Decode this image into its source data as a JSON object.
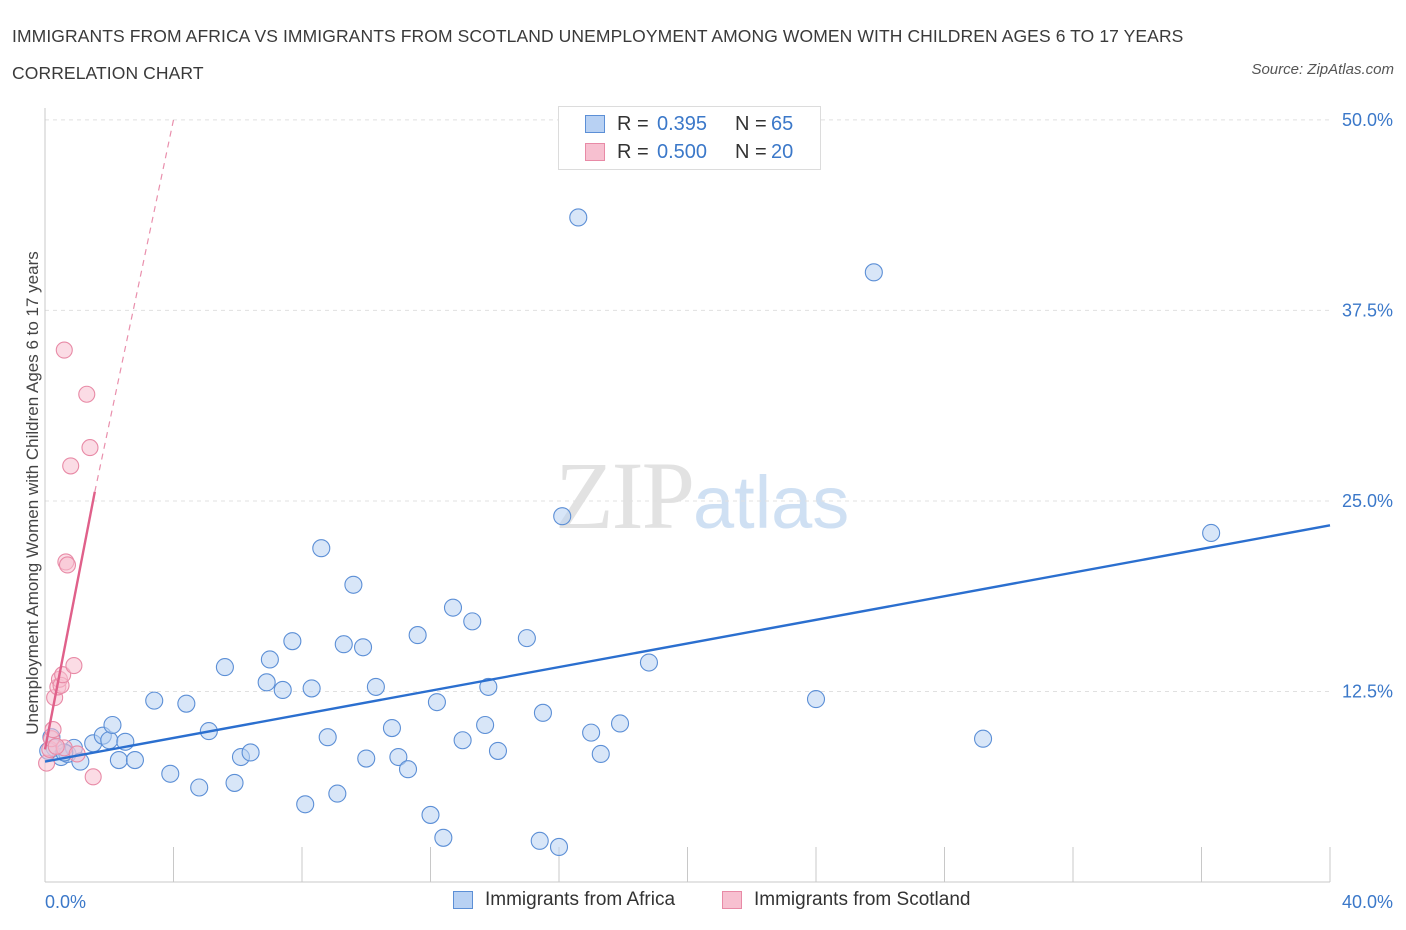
{
  "title": "IMMIGRANTS FROM AFRICA VS IMMIGRANTS FROM SCOTLAND UNEMPLOYMENT AMONG WOMEN WITH CHILDREN AGES 6 TO 17 YEARS CORRELATION CHART",
  "source": "Source: ZipAtlas.com",
  "watermark": {
    "zip": "ZIP",
    "atlas": "atlas"
  },
  "legend": {
    "africa": {
      "r_label": "R =",
      "r_value": "0.395",
      "n_label": "N =",
      "n_value": "65"
    },
    "scotland": {
      "r_label": "R =",
      "r_value": "0.500",
      "n_label": "N =",
      "n_value": "20"
    }
  },
  "colors": {
    "africa_fill": "#b8d1f3",
    "africa_stroke": "#5c8fd6",
    "africa_line": "#2b6fcf",
    "scotland_fill": "#f7c0d0",
    "scotland_stroke": "#e88aa6",
    "scotland_line": "#e0608a",
    "tick_label": "#3b78c9",
    "grid": "#e0e0e0"
  },
  "chart_data": {
    "type": "scatter",
    "title": "IMMIGRANTS FROM AFRICA VS IMMIGRANTS FROM SCOTLAND UNEMPLOYMENT AMONG WOMEN WITH CHILDREN AGES 6 TO 17 YEARS CORRELATION CHART",
    "ylabel": "Unemployment Among Women with Children Ages 6 to 17 years",
    "xlim": [
      0,
      40
    ],
    "ylim": [
      0,
      50
    ],
    "x_tick_labels": [
      "0.0%",
      "40.0%"
    ],
    "y_ticks": [
      12.5,
      25.0,
      37.5,
      50.0
    ],
    "y_tick_labels": [
      "12.5%",
      "25.0%",
      "37.5%",
      "50.0%"
    ],
    "grid": true,
    "legend_position": "top-center",
    "series": [
      {
        "name": "Immigrants from Africa",
        "points": [
          [
            0.2,
            9.5
          ],
          [
            0.3,
            8.8
          ],
          [
            0.5,
            8.2
          ],
          [
            0.7,
            8.4
          ],
          [
            0.9,
            8.8
          ],
          [
            1.1,
            7.9
          ],
          [
            1.5,
            9.1
          ],
          [
            1.8,
            9.6
          ],
          [
            2.0,
            9.3
          ],
          [
            2.1,
            10.3
          ],
          [
            2.3,
            8.0
          ],
          [
            2.5,
            9.2
          ],
          [
            2.8,
            8.0
          ],
          [
            3.4,
            11.9
          ],
          [
            3.9,
            7.1
          ],
          [
            4.4,
            11.7
          ],
          [
            4.8,
            6.2
          ],
          [
            5.1,
            9.9
          ],
          [
            5.6,
            14.1
          ],
          [
            5.9,
            6.5
          ],
          [
            6.1,
            8.2
          ],
          [
            6.4,
            8.5
          ],
          [
            6.9,
            13.1
          ],
          [
            7.0,
            14.6
          ],
          [
            7.4,
            12.6
          ],
          [
            7.7,
            15.8
          ],
          [
            8.1,
            5.1
          ],
          [
            8.3,
            12.7
          ],
          [
            8.6,
            21.9
          ],
          [
            8.8,
            9.5
          ],
          [
            9.1,
            5.8
          ],
          [
            9.3,
            15.6
          ],
          [
            9.6,
            19.5
          ],
          [
            9.9,
            15.4
          ],
          [
            10.0,
            8.1
          ],
          [
            10.3,
            12.8
          ],
          [
            10.8,
            10.1
          ],
          [
            11.0,
            8.2
          ],
          [
            11.3,
            7.4
          ],
          [
            11.6,
            16.2
          ],
          [
            12.0,
            4.4
          ],
          [
            12.2,
            11.8
          ],
          [
            12.4,
            2.9
          ],
          [
            12.7,
            18.0
          ],
          [
            13.0,
            9.3
          ],
          [
            13.3,
            17.1
          ],
          [
            13.7,
            10.3
          ],
          [
            13.8,
            12.8
          ],
          [
            14.1,
            8.6
          ],
          [
            15.0,
            16.0
          ],
          [
            15.4,
            2.7
          ],
          [
            15.5,
            11.1
          ],
          [
            16.0,
            2.3
          ],
          [
            16.1,
            24.0
          ],
          [
            16.6,
            43.6
          ],
          [
            17.0,
            9.8
          ],
          [
            17.3,
            8.4
          ],
          [
            17.9,
            10.4
          ],
          [
            18.8,
            14.4
          ],
          [
            24.0,
            12.0
          ],
          [
            25.8,
            40.0
          ],
          [
            29.2,
            9.4
          ],
          [
            36.3,
            22.9
          ],
          [
            0.1,
            8.6
          ],
          [
            0.6,
            8.5
          ]
        ],
        "trend": {
          "x": [
            0,
            40
          ],
          "y": [
            7.9,
            23.4
          ]
        }
      },
      {
        "name": "Immigrants from Scotland",
        "points": [
          [
            0.05,
            7.8
          ],
          [
            0.15,
            8.7
          ],
          [
            0.2,
            9.4
          ],
          [
            0.25,
            10.0
          ],
          [
            0.3,
            12.1
          ],
          [
            0.4,
            12.8
          ],
          [
            0.45,
            13.3
          ],
          [
            0.5,
            12.9
          ],
          [
            0.55,
            13.6
          ],
          [
            0.6,
            8.8
          ],
          [
            0.65,
            21.0
          ],
          [
            0.7,
            20.8
          ],
          [
            0.8,
            27.3
          ],
          [
            0.9,
            14.2
          ],
          [
            1.0,
            8.4
          ],
          [
            0.6,
            34.9
          ],
          [
            1.3,
            32.0
          ],
          [
            1.4,
            28.5
          ],
          [
            1.5,
            6.9
          ],
          [
            0.35,
            8.9
          ]
        ],
        "trend": {
          "x": [
            0,
            1.55
          ],
          "y": [
            8.7,
            25.6
          ]
        },
        "trend_extension": {
          "x": [
            1.55,
            4.0
          ],
          "y": [
            25.6,
            50.0
          ]
        }
      }
    ]
  },
  "bottom_legend": {
    "africa": "Immigrants from Africa",
    "scotland": "Immigrants from Scotland"
  }
}
